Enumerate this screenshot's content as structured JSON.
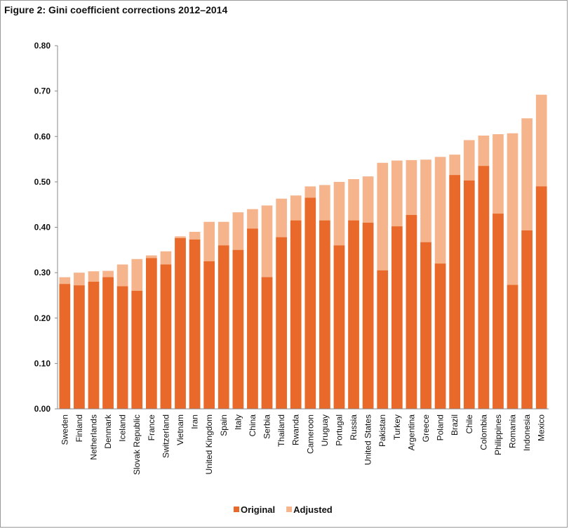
{
  "chart_data": {
    "type": "bar",
    "title": "Figure 2: Gini coefficient corrections 2012–2014",
    "categories": [
      "Sweden",
      "Finland",
      "Netherlands",
      "Denmark",
      "Iceland",
      "Slovak Republic",
      "France",
      "Switzerland",
      "Vietnam",
      "Iran",
      "United Kingdom",
      "Spain",
      "Italy",
      "China",
      "Serbia",
      "Thailand",
      "Rwanda",
      "Cameroon",
      "Uruguay",
      "Portugal",
      "Russia",
      "United States",
      "Pakistan",
      "Turkey",
      "Argentina",
      "Greece",
      "Poland",
      "Brazil",
      "Chile",
      "Colombia",
      "Philippines",
      "Romania",
      "Indonesia",
      "Mexico"
    ],
    "series": [
      {
        "name": "Original",
        "color": "#e8692a",
        "values": [
          0.275,
          0.272,
          0.28,
          0.29,
          0.27,
          0.26,
          0.332,
          0.318,
          0.376,
          0.373,
          0.325,
          0.36,
          0.35,
          0.397,
          0.29,
          0.378,
          0.415,
          0.465,
          0.415,
          0.36,
          0.415,
          0.41,
          0.305,
          0.402,
          0.427,
          0.367,
          0.32,
          0.515,
          0.503,
          0.535,
          0.43,
          0.273,
          0.393,
          0.49
        ]
      },
      {
        "name": "Adjusted",
        "color": "#f5b48c",
        "values": [
          0.29,
          0.3,
          0.303,
          0.304,
          0.318,
          0.33,
          0.338,
          0.347,
          0.38,
          0.39,
          0.412,
          0.412,
          0.433,
          0.44,
          0.448,
          0.463,
          0.47,
          0.49,
          0.493,
          0.5,
          0.506,
          0.512,
          0.542,
          0.547,
          0.548,
          0.549,
          0.555,
          0.56,
          0.592,
          0.602,
          0.605,
          0.607,
          0.64,
          0.692
        ]
      }
    ],
    "ylim": [
      0,
      0.8
    ],
    "yticks": [
      {
        "value": 0,
        "label": "0.00"
      },
      {
        "value": 0.1,
        "label": "0.10"
      },
      {
        "value": 0.2,
        "label": "0.20"
      },
      {
        "value": 0.3,
        "label": "0.30"
      },
      {
        "value": 0.4,
        "label": "0.40"
      },
      {
        "value": 0.5,
        "label": "0.50"
      },
      {
        "value": 0.6,
        "label": "0.60"
      },
      {
        "value": 0.7,
        "label": "0.70"
      },
      {
        "value": 0.8,
        "label": "0.80"
      }
    ],
    "overlap": true,
    "legend": "bottom"
  }
}
